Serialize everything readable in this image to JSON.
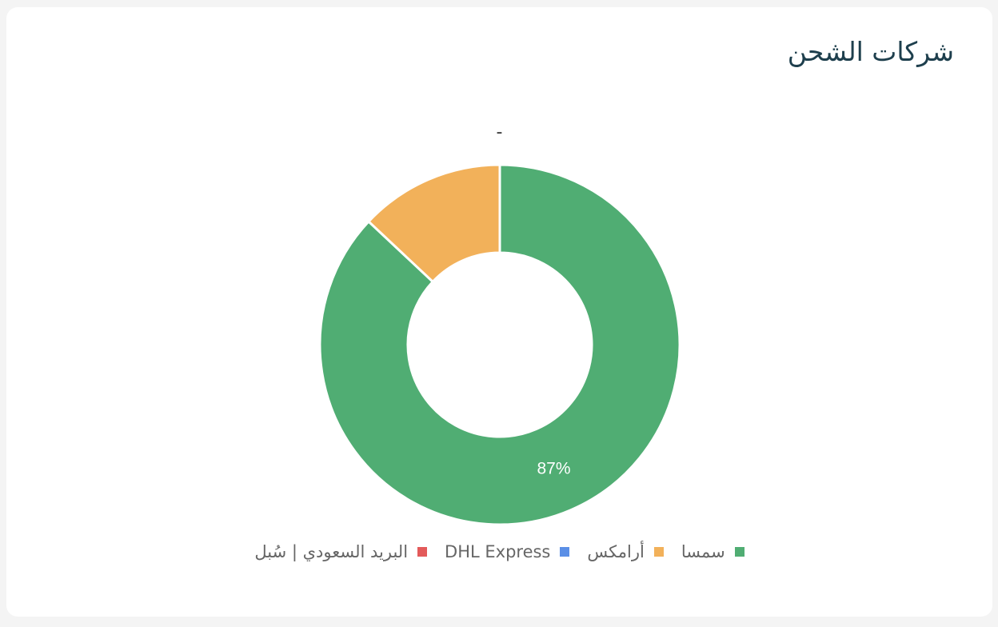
{
  "card": {
    "title": "شركات الشحن"
  },
  "chart_data": {
    "type": "pie",
    "variant": "donut",
    "subtitle": "-",
    "categories": [
      "سمسا",
      "أرامكس",
      "DHL Express",
      "البريد السعودي | سُبل"
    ],
    "values": [
      87,
      13,
      0,
      0
    ],
    "colors": [
      "#50ad73",
      "#f2b15a",
      "#5b8fe6",
      "#e35a5a"
    ],
    "data_labels": [
      "87%",
      "",
      "",
      ""
    ],
    "legend_position": "bottom"
  }
}
